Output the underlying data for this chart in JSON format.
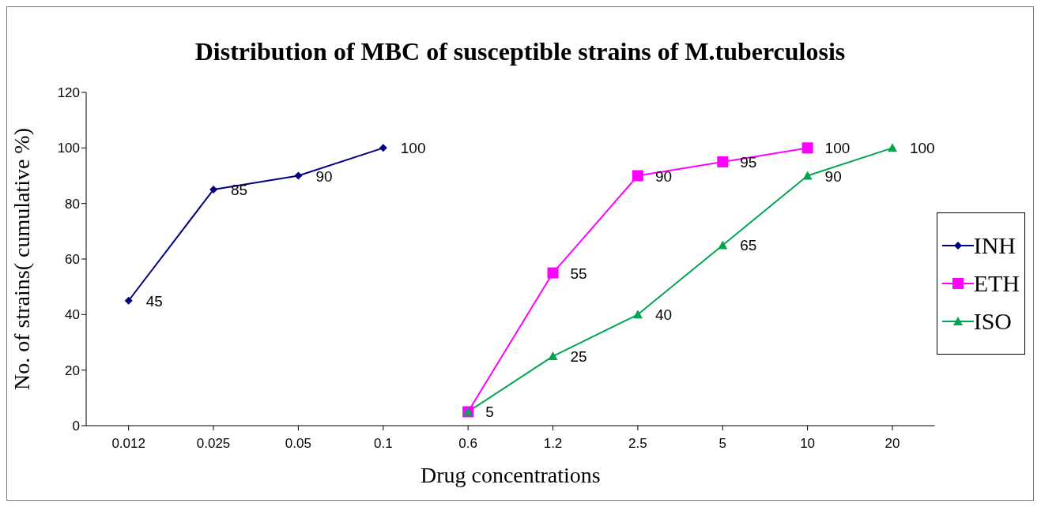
{
  "chart_data": {
    "type": "line",
    "title": "Distribution of MBC of susceptible strains of M.tuberculosis",
    "xlabel": "Drug concentrations",
    "ylabel": "No. of strains( cumulative %)",
    "categories": [
      "0.012",
      "0.025",
      "0.05",
      "0.1",
      "0.6",
      "1.2",
      "2.5",
      "5",
      "10",
      "20"
    ],
    "series": [
      {
        "name": "INH",
        "color": "#000080",
        "marker": "diamond",
        "values": [
          45,
          85,
          90,
          100,
          null,
          null,
          null,
          null,
          null,
          null
        ],
        "value_labels": [
          "45",
          "85",
          "90",
          "100",
          null,
          null,
          null,
          null,
          null,
          null
        ]
      },
      {
        "name": "ETH",
        "color": "#ff00ff",
        "marker": "square",
        "values": [
          null,
          null,
          null,
          null,
          5,
          55,
          90,
          95,
          100,
          null
        ],
        "value_labels": [
          null,
          null,
          null,
          null,
          null,
          "55",
          "90",
          "95",
          "100",
          null
        ]
      },
      {
        "name": "ISO",
        "color": "#00a651",
        "marker": "triangle",
        "values": [
          null,
          null,
          null,
          null,
          5,
          25,
          40,
          65,
          90,
          100
        ],
        "value_labels": [
          null,
          null,
          null,
          null,
          "5",
          "25",
          "40",
          "65",
          "90",
          "100"
        ]
      }
    ],
    "ylim": [
      0,
      120
    ],
    "yticks": [
      0,
      20,
      40,
      60,
      80,
      100,
      120
    ],
    "grid": false,
    "legend": "right",
    "line_style": "solid"
  }
}
